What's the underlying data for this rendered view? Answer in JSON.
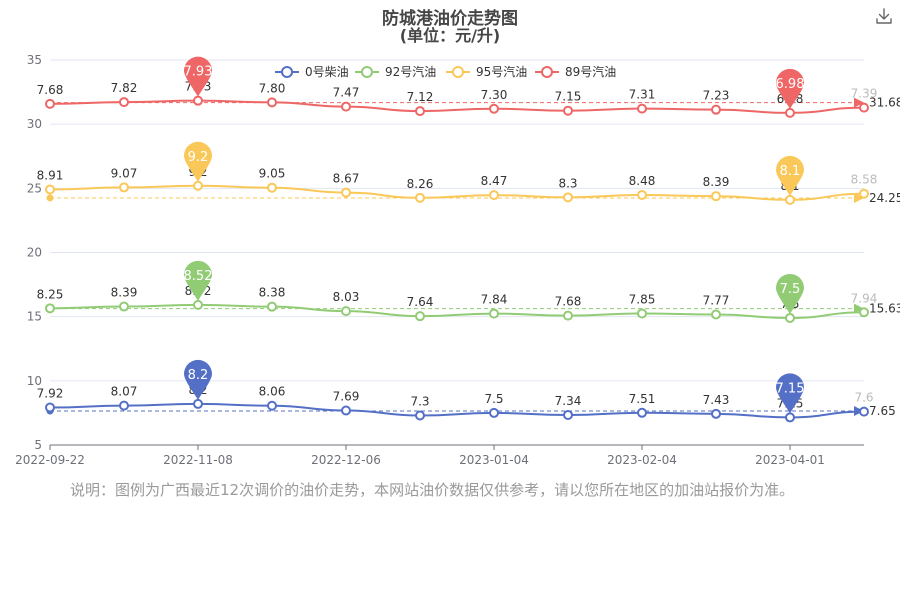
{
  "title": "防城港油价走势图",
  "subtitle": "(单位：元/升)",
  "note": "说明：图例为广西最近12次调价的油价走势，本网站油价数据仅供参考，请以您所在地区的加油站报价为准。",
  "chart_data": {
    "type": "line",
    "x_axis": {
      "tick_labels": [
        "2022-09-22",
        "2022-11-08",
        "2022-12-06",
        "2023-01-04",
        "2023-02-04",
        "2023-04-01"
      ],
      "tick_indices": [
        0,
        2,
        4,
        6,
        8,
        10
      ],
      "count": 12
    },
    "y_axis": {
      "min": 5,
      "max": 35,
      "ticks": [
        5,
        10,
        15,
        20,
        25,
        30,
        35
      ]
    },
    "legend": {
      "placement": "top"
    },
    "series": [
      {
        "name": "0号柴油",
        "color": "#5470c6",
        "values": [
          7.92,
          8.07,
          8.2,
          8.06,
          7.69,
          7.3,
          7.5,
          7.34,
          7.51,
          7.43,
          7.15,
          7.6
        ],
        "max_label": "8.2",
        "min_label": "7.15",
        "average_label": "7.65"
      },
      {
        "name": "92号汽油",
        "color": "#91cc75",
        "values": [
          8.25,
          8.39,
          8.52,
          8.38,
          8.03,
          7.64,
          7.84,
          7.68,
          7.85,
          7.77,
          7.5,
          7.94
        ],
        "max_label": "8.52",
        "min_label": "7.5",
        "average_label": "15.63"
      },
      {
        "name": "95号汽油",
        "color": "#fac858",
        "values": [
          8.91,
          9.07,
          9.2,
          9.05,
          8.67,
          8.26,
          8.47,
          8.3,
          8.48,
          8.39,
          8.1,
          8.58
        ],
        "max_label": "9.2",
        "min_label": "8.1",
        "average_label": "24.25"
      },
      {
        "name": "89号汽油",
        "color": "#ee6666",
        "values": [
          7.68,
          7.82,
          7.93,
          7.8,
          7.47,
          7.12,
          7.3,
          7.15,
          7.31,
          7.23,
          6.98,
          7.39
        ],
        "max_label": "7.93",
        "min_label": "6.98",
        "average_label": "31.68"
      }
    ]
  }
}
